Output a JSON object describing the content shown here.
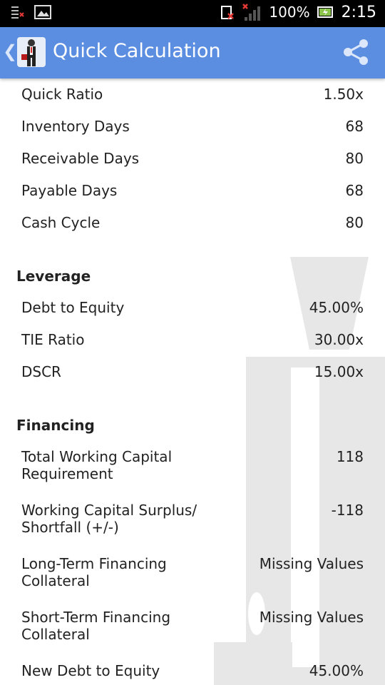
{
  "status_bar": {
    "battery": "100%",
    "time": "2:15"
  },
  "app_bar": {
    "title": "Quick Calculation"
  },
  "rows_top": [
    {
      "label": "Quick Ratio",
      "value": "1.50x"
    },
    {
      "label": "Inventory Days",
      "value": "68"
    },
    {
      "label": "Receivable Days",
      "value": "80"
    },
    {
      "label": "Payable Days",
      "value": "68"
    },
    {
      "label": "Cash Cycle",
      "value": "80"
    }
  ],
  "leverage": {
    "title": "Leverage",
    "rows": [
      {
        "label": "Debt to Equity",
        "value": "45.00%"
      },
      {
        "label": "TIE Ratio",
        "value": "30.00x"
      },
      {
        "label": "DSCR",
        "value": "15.00x"
      }
    ]
  },
  "financing": {
    "title": "Financing",
    "rows": [
      {
        "label": "Total Working Capital Requirement",
        "value": "118"
      },
      {
        "label": "Working Capital Surplus/ Shortfall (+/-)",
        "value": "-118"
      },
      {
        "label": "Long-Term Financing Collateral",
        "value": "Missing Values"
      },
      {
        "label": "Short-Term Financing Collateral",
        "value": "Missing Values"
      },
      {
        "label": "New Debt to Equity",
        "value": "45.00%"
      }
    ]
  },
  "colors": {
    "app_bar": "#5b8de1",
    "status_bar": "#000000",
    "text": "#222222"
  }
}
